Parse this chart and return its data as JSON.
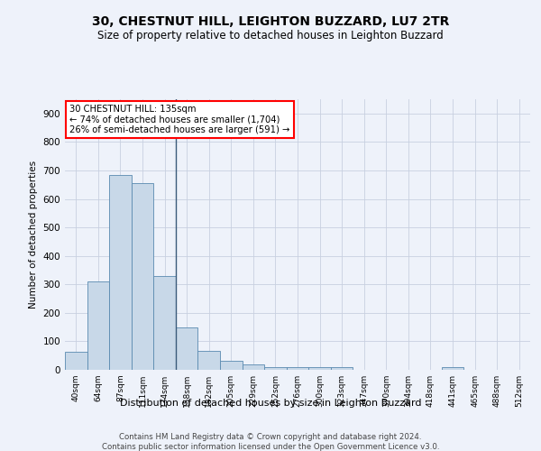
{
  "title1": "30, CHESTNUT HILL, LEIGHTON BUZZARD, LU7 2TR",
  "title2": "Size of property relative to detached houses in Leighton Buzzard",
  "xlabel": "Distribution of detached houses by size in Leighton Buzzard",
  "ylabel": "Number of detached properties",
  "footer1": "Contains HM Land Registry data © Crown copyright and database right 2024.",
  "footer2": "Contains public sector information licensed under the Open Government Licence v3.0.",
  "bar_labels": [
    "40sqm",
    "64sqm",
    "87sqm",
    "111sqm",
    "134sqm",
    "158sqm",
    "182sqm",
    "205sqm",
    "229sqm",
    "252sqm",
    "276sqm",
    "300sqm",
    "323sqm",
    "347sqm",
    "370sqm",
    "394sqm",
    "418sqm",
    "441sqm",
    "465sqm",
    "488sqm",
    "512sqm"
  ],
  "bar_values": [
    62,
    310,
    685,
    655,
    330,
    150,
    65,
    33,
    20,
    11,
    11,
    10,
    9,
    0,
    0,
    0,
    0,
    8,
    0,
    0,
    0
  ],
  "bar_color": "#c8d8e8",
  "bar_edge_color": "#5a8ab0",
  "vline_x": 4.5,
  "vline_color": "#3a5a7a",
  "annotation_line1": "30 CHESTNUT HILL: 135sqm",
  "annotation_line2": "← 74% of detached houses are smaller (1,704)",
  "annotation_line3": "26% of semi-detached houses are larger (591) →",
  "annotation_box_color": "white",
  "annotation_box_edge_color": "red",
  "ylim": [
    0,
    950
  ],
  "yticks": [
    0,
    100,
    200,
    300,
    400,
    500,
    600,
    700,
    800,
    900
  ],
  "bg_color": "#eef2fa",
  "grid_color": "#c8d0e0",
  "title1_fontsize": 10,
  "title2_fontsize": 8.5
}
